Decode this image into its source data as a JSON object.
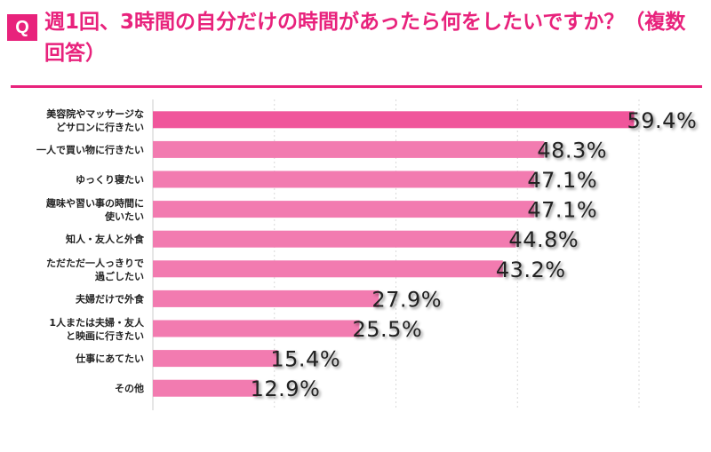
{
  "header": {
    "badge": "Q",
    "title": "週1回、3時間の自分だけの時間があったら何をしたいですか？（複数回答）"
  },
  "colors": {
    "accent": "#e8227c",
    "bar_main": "#f0569b",
    "bar": "#f27bb0",
    "grid": "#d9d9d9"
  },
  "chart_data": {
    "type": "bar",
    "orientation": "horizontal",
    "title": "週1回、3時間の自分だけの時間があったら何をしたいですか？（複数回答）",
    "categories": [
      [
        "美容院やマッサージな",
        "どサロンに行きたい"
      ],
      [
        "一人で買い物に行きたい"
      ],
      [
        "ゆっくり寝たい"
      ],
      [
        "趣味や習い事の時間に",
        "使いたい"
      ],
      [
        "知人・友人と外食"
      ],
      [
        "ただただ一人っきりで",
        "過ごしたい"
      ],
      [
        "夫婦だけで外食"
      ],
      [
        "1人または夫婦・友人",
        "と映画に行きたい"
      ],
      [
        "仕事にあてたい"
      ],
      [
        "その他"
      ]
    ],
    "values": [
      59.4,
      48.3,
      47.1,
      47.1,
      44.8,
      43.2,
      27.9,
      25.5,
      15.4,
      12.9
    ],
    "value_labels": [
      "59.4%",
      "48.3%",
      "47.1%",
      "47.1%",
      "44.8%",
      "43.2%",
      "27.9%",
      "25.5%",
      "15.4%",
      "12.9%"
    ],
    "xlim": [
      0,
      60
    ],
    "grid_x": [
      0,
      15,
      30,
      45,
      60
    ],
    "grid": true,
    "legend": "none"
  }
}
